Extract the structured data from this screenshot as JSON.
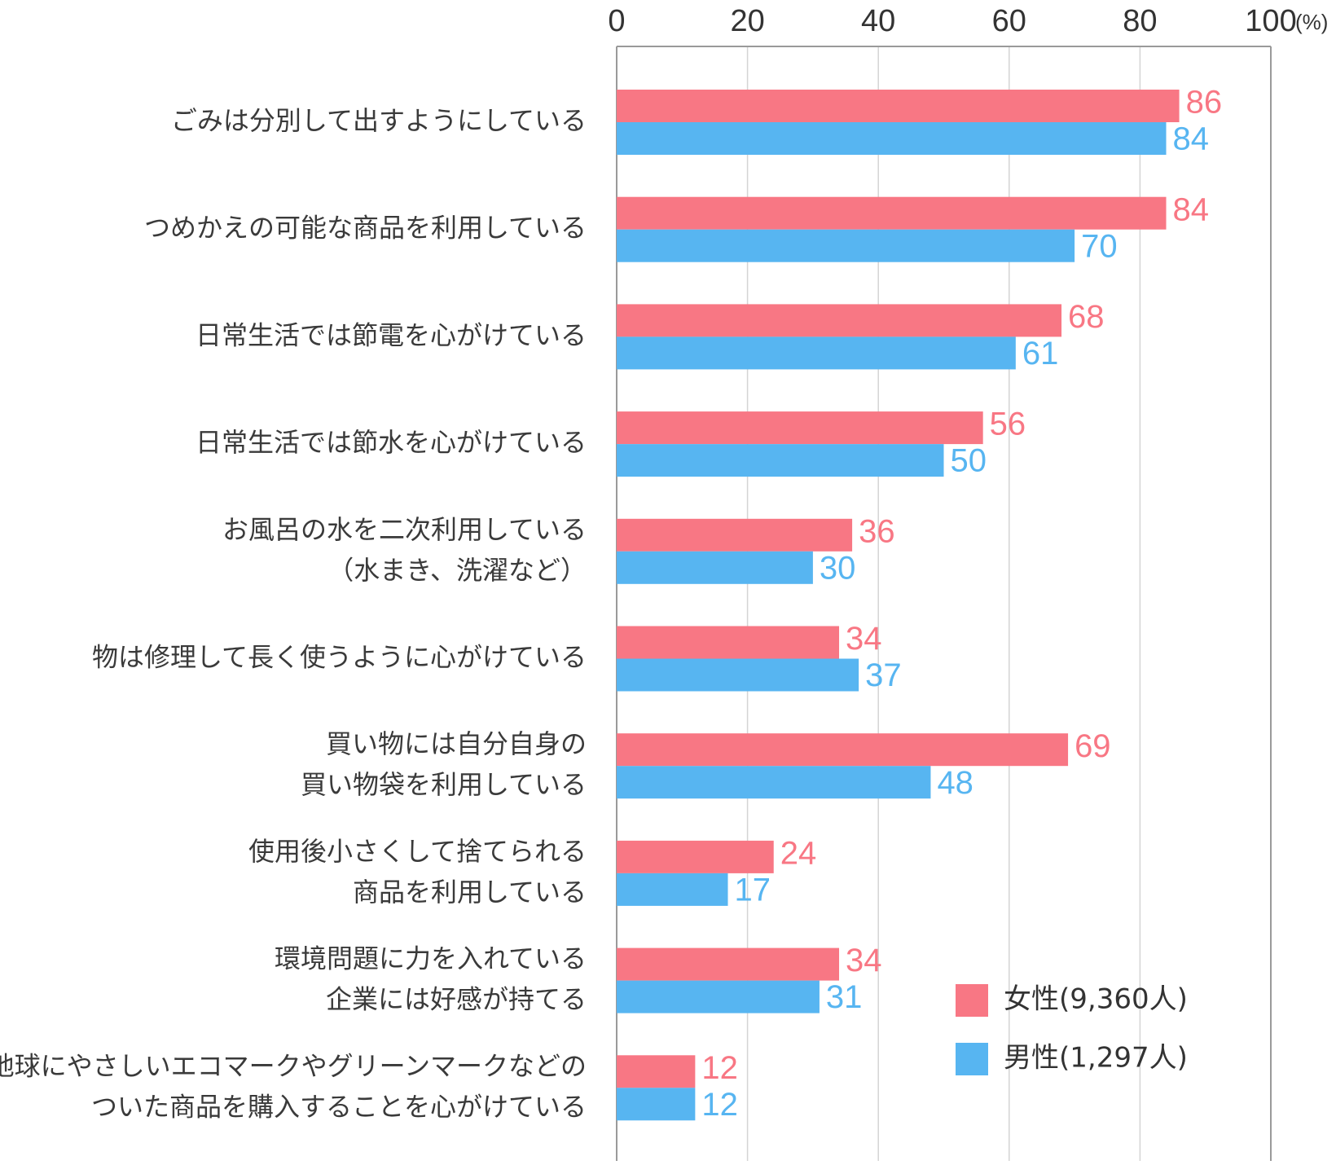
{
  "chart_data": {
    "type": "bar",
    "orientation": "horizontal",
    "title": "",
    "xlabel": "",
    "ylabel": "",
    "unit": "(%)",
    "xlim": [
      0,
      100
    ],
    "x_ticks": [
      "0",
      "20",
      "40",
      "60",
      "80",
      "100"
    ],
    "grid": true,
    "legend_position": "bottom-right",
    "categories": [
      [
        "ごみは分別して出すようにしている"
      ],
      [
        "つめかえの可能な商品を利用している"
      ],
      [
        "日常生活では節電を心がけている"
      ],
      [
        "日常生活では節水を心がけている"
      ],
      [
        "お風呂の水を二次利用している",
        "（水まき、洗濯など）"
      ],
      [
        "物は修理して長く使うように心がけている"
      ],
      [
        "買い物には自分自身の",
        "買い物袋を利用している"
      ],
      [
        "使用後小さくして捨てられる",
        "商品を利用している"
      ],
      [
        "環境問題に力を入れている",
        "企業には好感が持てる"
      ],
      [
        "地球にやさしいエコマークやグリーンマークなどの",
        "ついた商品を購入することを心がけている"
      ]
    ],
    "series": [
      {
        "name": "女性(9,360人)",
        "color": "#f87784",
        "values": [
          86,
          84,
          68,
          56,
          36,
          34,
          69,
          24,
          34,
          12
        ]
      },
      {
        "name": "男性(1,297人)",
        "color": "#57b5f1",
        "values": [
          84,
          70,
          61,
          50,
          30,
          37,
          48,
          17,
          31,
          12
        ]
      }
    ]
  }
}
